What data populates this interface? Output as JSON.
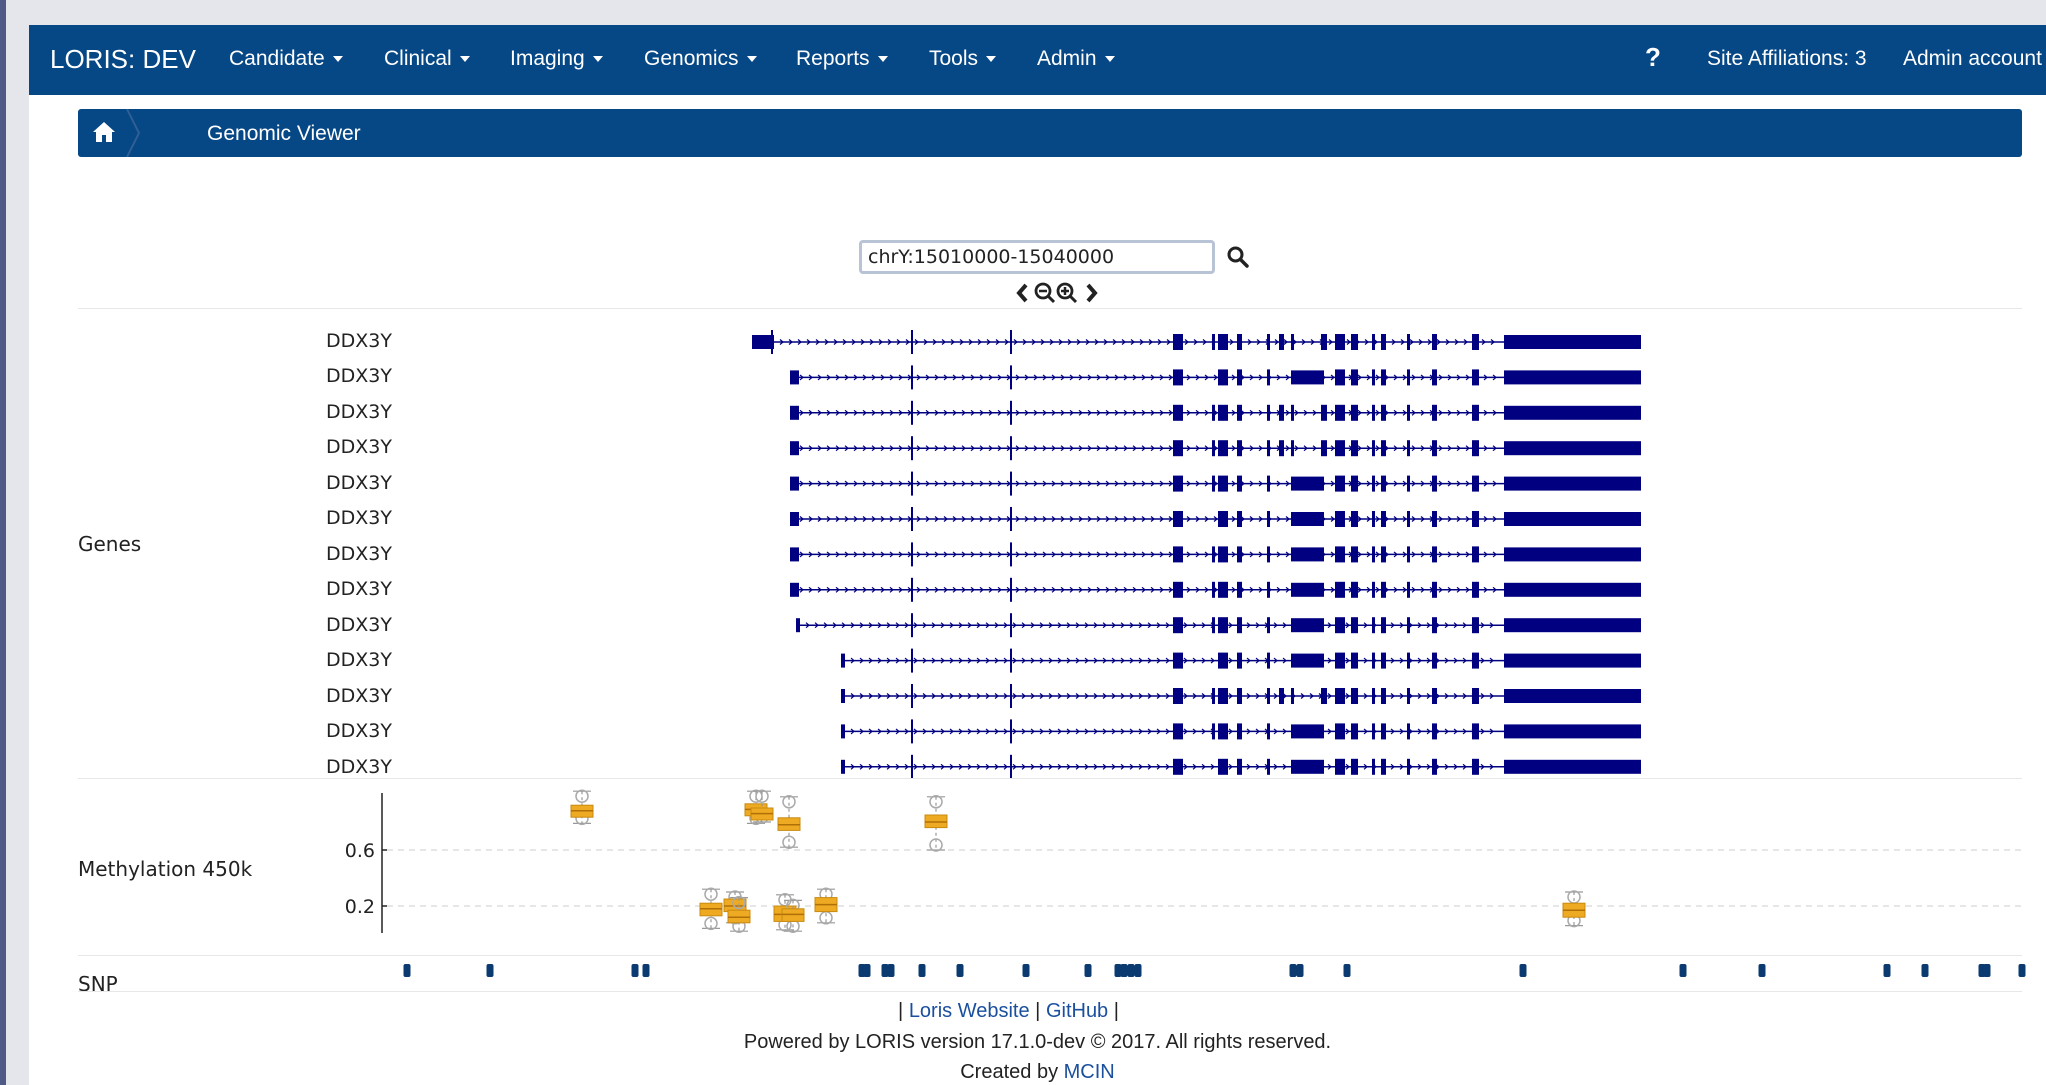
{
  "nav": {
    "brand": "LORIS: DEV",
    "menus": [
      {
        "label": "Candidate"
      },
      {
        "label": "Clinical"
      },
      {
        "label": "Imaging"
      },
      {
        "label": "Genomics"
      },
      {
        "label": "Reports"
      },
      {
        "label": "Tools"
      },
      {
        "label": "Admin"
      }
    ],
    "help": "?",
    "site_affiliations": "Site Affiliations: 3",
    "account": "Admin account"
  },
  "breadcrumb": {
    "current": "Genomic Viewer"
  },
  "viewer": {
    "locus": "chrY:15010000-15040000",
    "tracks": {
      "genes": {
        "label": "Genes",
        "transcripts": [
          "DDX3Y",
          "DDX3Y",
          "DDX3Y",
          "DDX3Y",
          "DDX3Y",
          "DDX3Y",
          "DDX3Y",
          "DDX3Y",
          "DDX3Y",
          "DDX3Y",
          "DDX3Y",
          "DDX3Y",
          "DDX3Y"
        ]
      },
      "methylation": {
        "label": "Methylation 450k",
        "ticks": [
          "0.6",
          "0.2"
        ]
      },
      "snp": {
        "label": "SNP"
      }
    }
  },
  "chart_data": {
    "type": "box",
    "title": "Methylation 450k",
    "ylabel": "",
    "yticks": [
      0.6,
      0.2
    ],
    "boxes": [
      {
        "median": 0.88,
        "q1": 0.85,
        "q3": 0.92,
        "min": 0.79,
        "max": 1.02
      },
      {
        "median": 0.18,
        "q1": 0.13,
        "q3": 0.22,
        "min": 0.04,
        "max": 0.32
      },
      {
        "median": 0.2,
        "q1": 0.16,
        "q3": 0.25,
        "min": 0.08,
        "max": 0.3
      },
      {
        "median": 0.12,
        "q1": 0.08,
        "q3": 0.17,
        "min": 0.02,
        "max": 0.26
      },
      {
        "median": 0.89,
        "q1": 0.86,
        "q3": 0.93,
        "min": 0.79,
        "max": 1.02
      },
      {
        "median": 0.86,
        "q1": 0.83,
        "q3": 0.9,
        "min": 0.8,
        "max": 1.02
      },
      {
        "median": 0.78,
        "q1": 0.74,
        "q3": 0.83,
        "min": 0.62,
        "max": 0.98
      },
      {
        "median": 0.14,
        "q1": 0.09,
        "q3": 0.2,
        "min": 0.03,
        "max": 0.28
      },
      {
        "median": 0.14,
        "q1": 0.09,
        "q3": 0.18,
        "min": 0.02,
        "max": 0.24
      },
      {
        "median": 0.21,
        "q1": 0.16,
        "q3": 0.26,
        "min": 0.08,
        "max": 0.32
      },
      {
        "median": 0.8,
        "q1": 0.76,
        "q3": 0.85,
        "min": 0.6,
        "max": 0.98
      },
      {
        "median": 0.17,
        "q1": 0.12,
        "q3": 0.22,
        "min": 0.06,
        "max": 0.3
      }
    ],
    "box_color": "#eeaa22"
  },
  "footer": {
    "link_website": "Loris Website",
    "link_github": "GitHub",
    "powered": "Powered by LORIS version 17.1.0-dev © 2017. All rights reserved.",
    "created_prefix": "Created by",
    "created_link": "MCIN"
  },
  "colors": {
    "navbar": "#064785",
    "gene": "#000080",
    "snp": "#0b3a70",
    "box": "#eeaa22"
  }
}
